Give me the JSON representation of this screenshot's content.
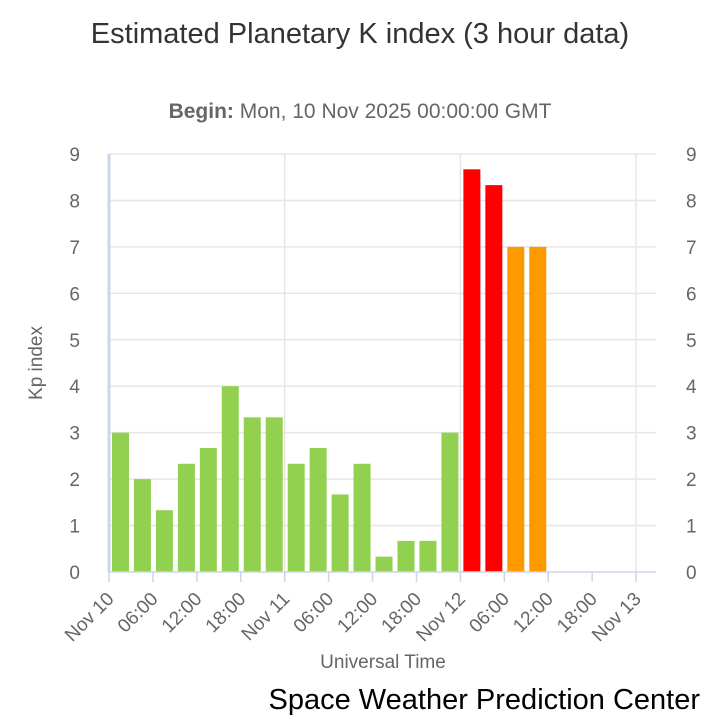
{
  "chart_data": {
    "type": "bar",
    "title": "Estimated Planetary K index (3 hour data)",
    "subtitle_label": "Begin:",
    "subtitle_value": "Mon, 10 Nov 2025 00:00:00 GMT",
    "xlabel": "Universal Time",
    "ylabel": "Kp index",
    "ylim": [
      0,
      9
    ],
    "yticks": [
      "0",
      "1",
      "2",
      "3",
      "4",
      "5",
      "6",
      "7",
      "8",
      "9"
    ],
    "xticks": [
      "Nov 10",
      "06:00",
      "12:00",
      "18:00",
      "Nov 11",
      "06:00",
      "12:00",
      "18:00",
      "Nov 12",
      "06:00",
      "12:00",
      "18:00",
      "Nov 13"
    ],
    "x_range_hours": [
      0,
      72
    ],
    "bar_interval_hours": 3,
    "values": [
      3,
      2,
      1.33,
      2.33,
      2.67,
      4,
      3.33,
      3.33,
      2.33,
      2.67,
      1.67,
      2.33,
      0.33,
      0.67,
      0.67,
      3,
      8.67,
      8.33,
      7,
      7
    ],
    "colors": {
      "low": "#92d050",
      "storm": "#ff9900",
      "severe": "#ff0000"
    },
    "grid": true
  },
  "credit": "Space Weather Prediction Center"
}
